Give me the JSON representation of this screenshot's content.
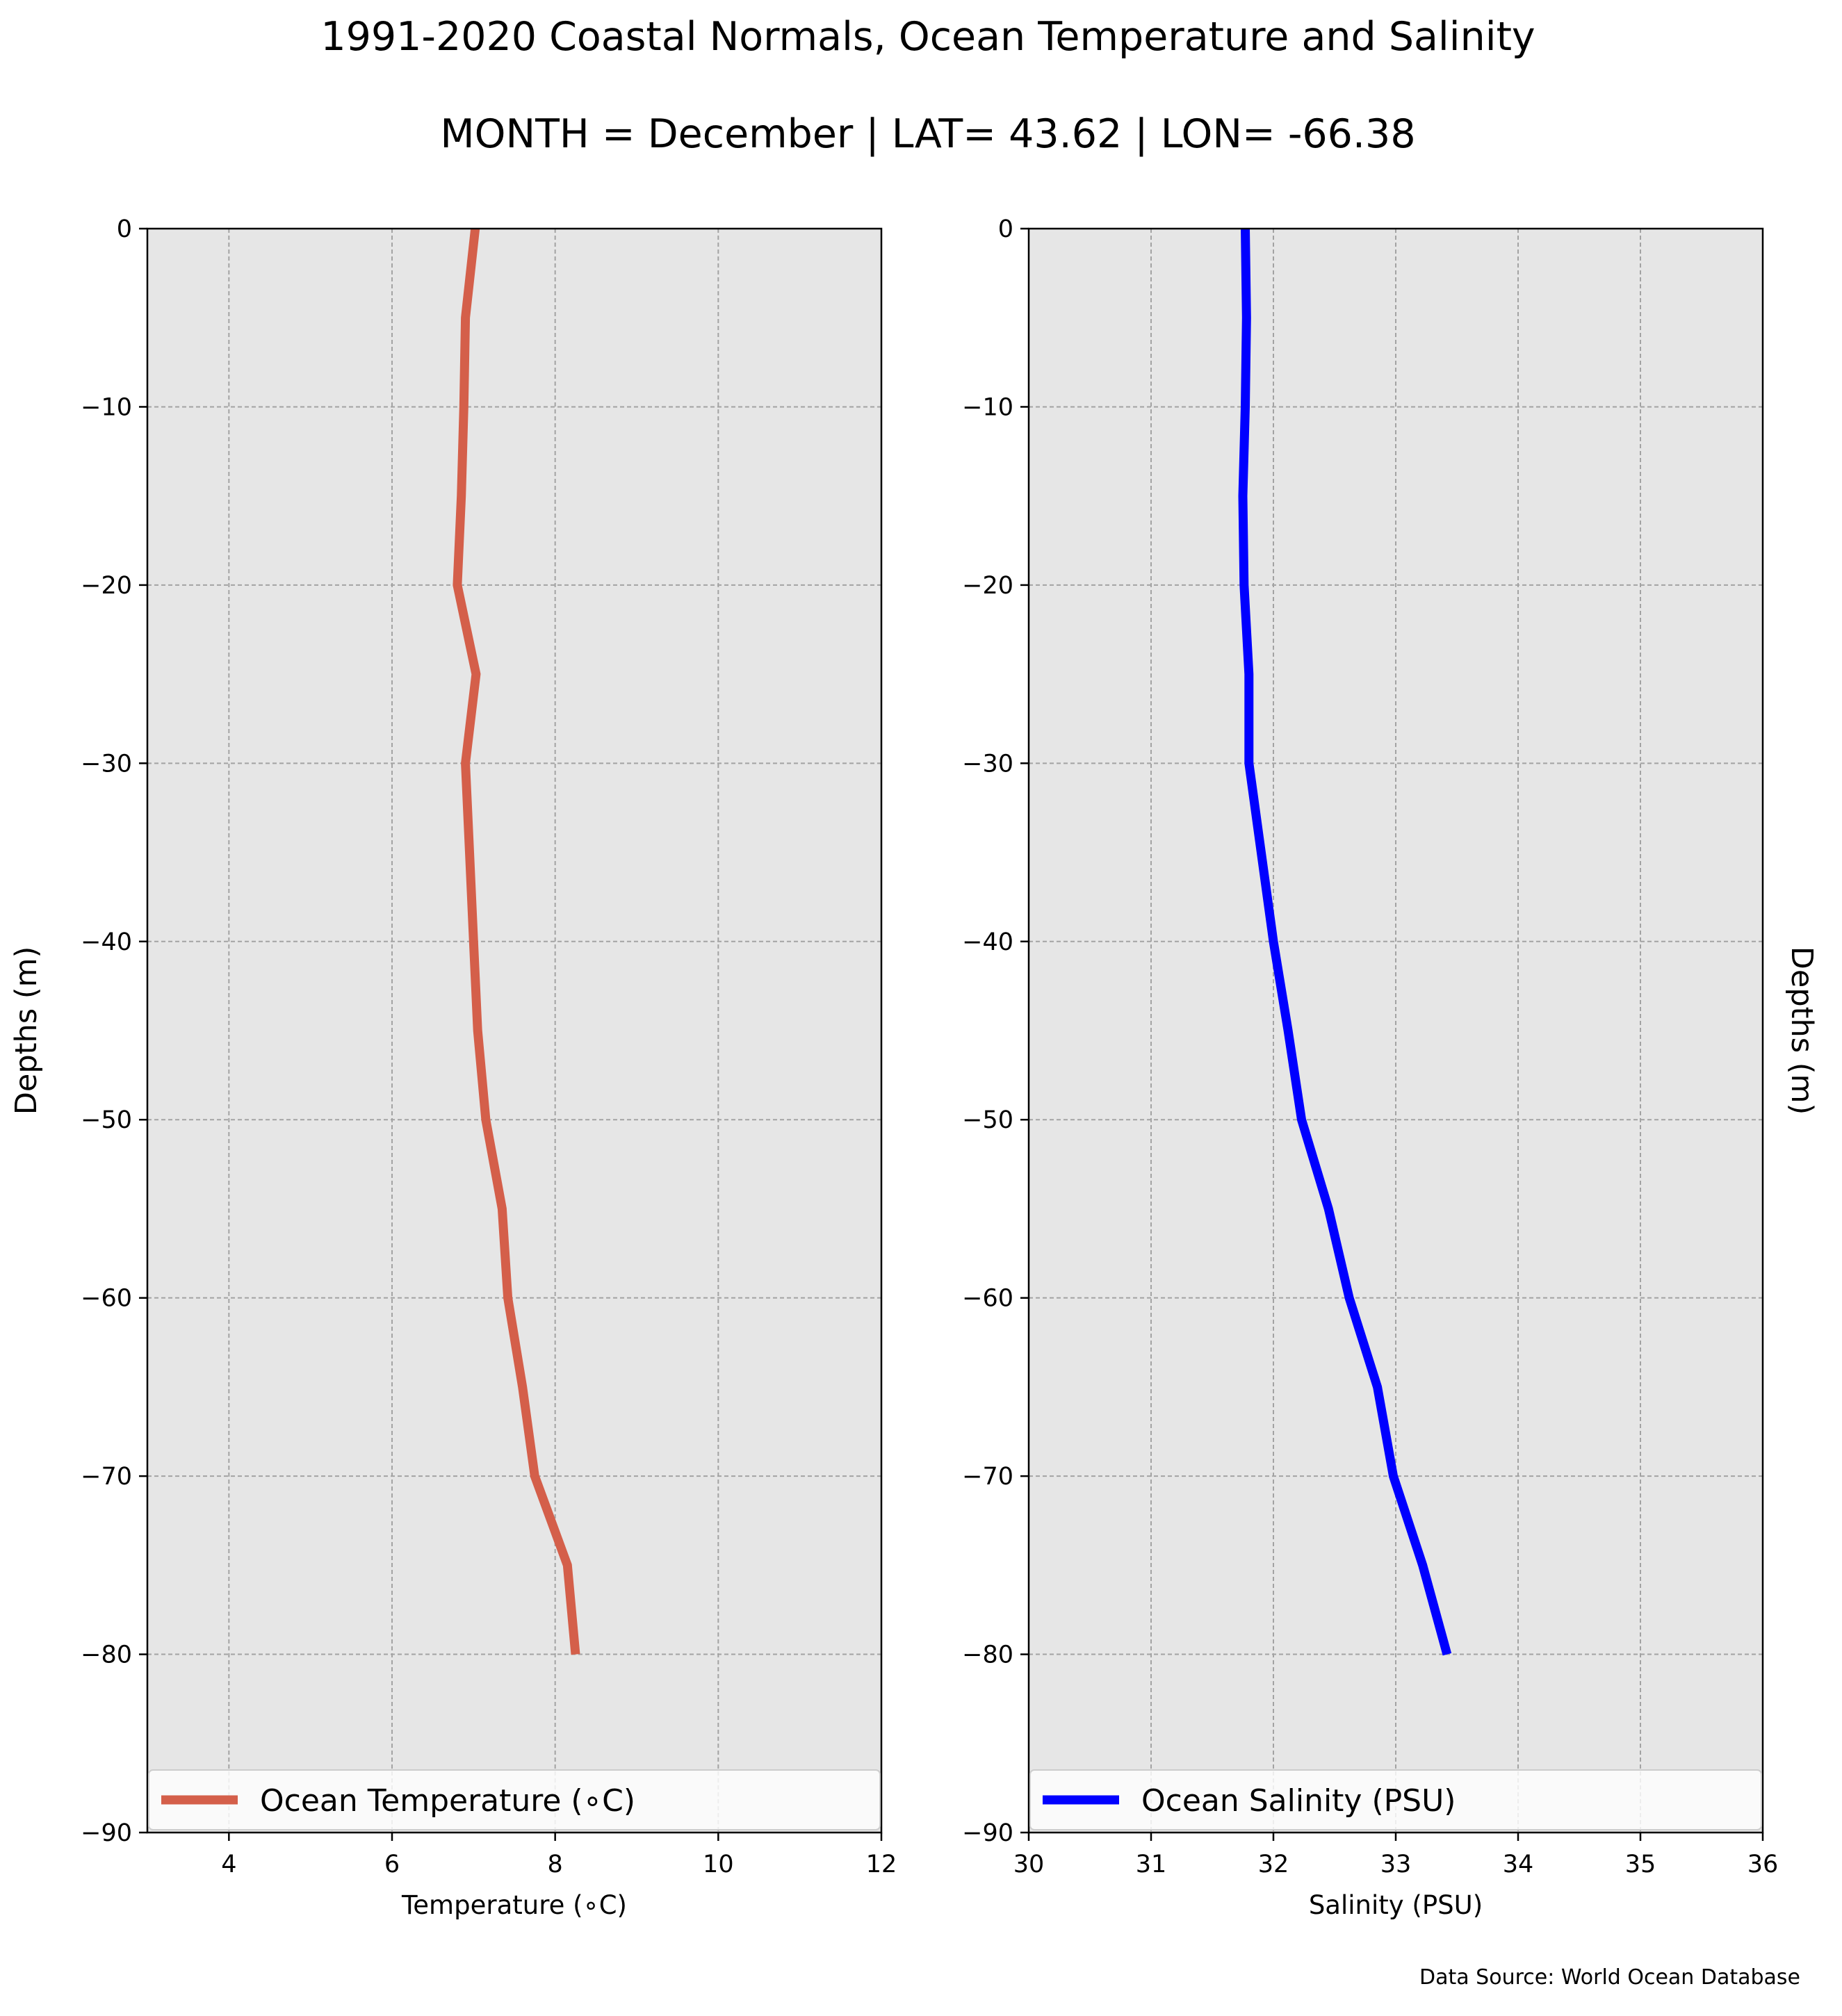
{
  "figure": {
    "title": "1991-2020 Coastal Normals, Ocean Temperature and Salinity",
    "subtitle": "MONTH = December | LAT= 43.62 | LON= -66.38",
    "source": "Data Source: World Ocean Database"
  },
  "chart_data": [
    {
      "type": "line",
      "xlabel": "Temperature ($^\\circ$C)",
      "xlabel_display": "Temperature (∘C)",
      "ylabel": "Depths (m)",
      "xlim": [
        3,
        12
      ],
      "ylim": [
        -90,
        0
      ],
      "x_ticks": [
        4,
        6,
        8,
        10,
        12
      ],
      "y_ticks": [
        0,
        -10,
        -20,
        -30,
        -40,
        -50,
        -60,
        -70,
        -80,
        -90
      ],
      "y_tick_labels": [
        "0",
        "−10",
        "−20",
        "−30",
        "−40",
        "−50",
        "−60",
        "−70",
        "−80",
        "−90"
      ],
      "grid": true,
      "legend_position": "bottom",
      "series": [
        {
          "name": "Ocean Temperature (∘C)",
          "color": "#d45f4a",
          "points": [
            [
              7.02,
              0
            ],
            [
              6.9,
              -5
            ],
            [
              6.88,
              -10
            ],
            [
              6.85,
              -15
            ],
            [
              6.8,
              -20
            ],
            [
              7.03,
              -25
            ],
            [
              6.9,
              -30
            ],
            [
              6.95,
              -35
            ],
            [
              7.0,
              -40
            ],
            [
              7.05,
              -45
            ],
            [
              7.15,
              -50
            ],
            [
              7.35,
              -55
            ],
            [
              7.42,
              -60
            ],
            [
              7.6,
              -65
            ],
            [
              7.75,
              -70
            ],
            [
              8.15,
              -75
            ],
            [
              8.25,
              -80
            ]
          ]
        }
      ]
    },
    {
      "type": "line",
      "xlabel": "Salinity (PSU)",
      "ylabel": "Depths (m)",
      "xlim": [
        30,
        36
      ],
      "ylim": [
        -90,
        0
      ],
      "x_ticks": [
        30,
        31,
        32,
        33,
        34,
        35,
        36
      ],
      "y_ticks": [
        0,
        -10,
        -20,
        -30,
        -40,
        -50,
        -60,
        -70,
        -80,
        -90
      ],
      "y_tick_labels": [
        "0",
        "−10",
        "−20",
        "−30",
        "−40",
        "−50",
        "−60",
        "−70",
        "−80",
        "−90"
      ],
      "grid": true,
      "legend_position": "bottom",
      "series": [
        {
          "name": "Ocean Salinity (PSU)",
          "color": "#0000ff",
          "points": [
            [
              31.77,
              0
            ],
            [
              31.78,
              -5
            ],
            [
              31.77,
              -10
            ],
            [
              31.75,
              -15
            ],
            [
              31.76,
              -20
            ],
            [
              31.8,
              -25
            ],
            [
              31.8,
              -30
            ],
            [
              31.9,
              -35
            ],
            [
              32.0,
              -40
            ],
            [
              32.12,
              -45
            ],
            [
              32.23,
              -50
            ],
            [
              32.45,
              -55
            ],
            [
              32.62,
              -60
            ],
            [
              32.85,
              -65
            ],
            [
              32.98,
              -70
            ],
            [
              33.22,
              -75
            ],
            [
              33.42,
              -80
            ]
          ]
        }
      ]
    }
  ]
}
